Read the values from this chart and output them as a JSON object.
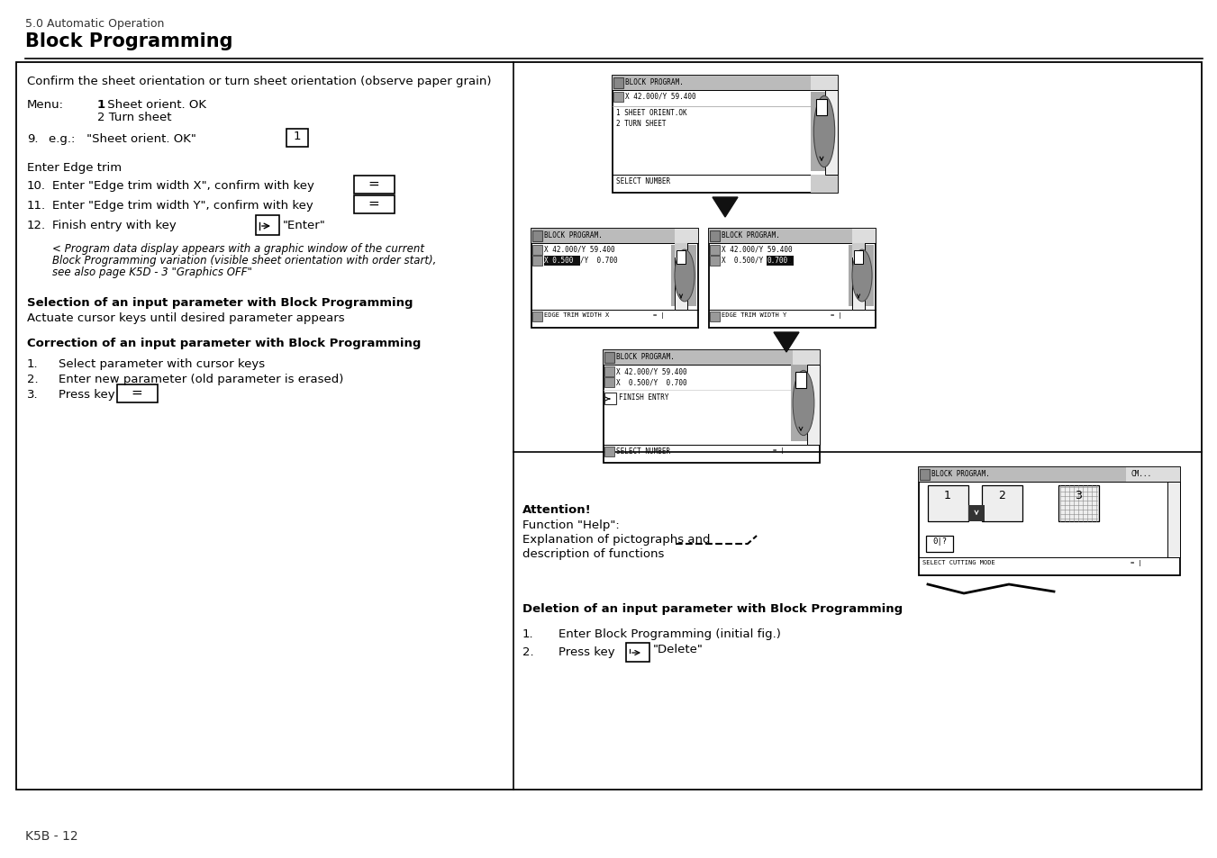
{
  "page_label": "5.0 Automatic Operation",
  "title": "Block Programming",
  "footer": "K5B - 12",
  "bg_color": "#ffffff",
  "border_color": "#000000",
  "left_panel": {
    "intro": "Confirm the sheet orientation or turn sheet orientation (observe paper grain)",
    "menu_label": "Menu:",
    "menu_item1_bold": "1",
    "menu_item1_rest": " Sheet orient. OK",
    "menu_item2": "2 Turn sheet",
    "step9_num": "9.",
    "step9_text": "e.g.:   \"Sheet orient. OK\"",
    "edge_trim": "Enter Edge trim",
    "step10_num": "10.",
    "step10_text": "Enter \"Edge trim width X\", confirm with key",
    "step11_num": "11.",
    "step11_text": "Enter \"Edge trim width Y\", confirm with key",
    "step12_num": "12.",
    "step12_text": "Finish entry with key",
    "step12_suffix": "\"Enter\"",
    "italic_note_l1": "< Program data display appears with a graphic window of the current",
    "italic_note_l2": "Block Programming variation (visible sheet orientation with order start),",
    "italic_note_l3": "see also page K5D - 3 \"Graphics OFF\"",
    "sel_header": "Selection of an input parameter with Block Programming",
    "sel_text": "Actuate cursor keys until desired parameter appears",
    "corr_header": "Correction of an input parameter with Block Programming",
    "corr1_num": "1.",
    "corr1_text": "Select parameter with cursor keys",
    "corr2_num": "2.",
    "corr2_text": "Enter new parameter (old parameter is erased)",
    "corr3_num": "3.",
    "corr3_text": "Press key"
  },
  "right_panel": {
    "attention_bold": "Attention!",
    "attention_l1": "Function \"Help\":",
    "attention_l2": "Explanation of pictographs and",
    "attention_l3": "description of functions",
    "del_header": "Deletion of an input parameter with Block Programming",
    "del1_num": "1.",
    "del1_text": "Enter Block Programming (initial fig.)",
    "del2_num": "2.",
    "del2_text": "Press key",
    "del2_suffix": "\"Delete\""
  }
}
